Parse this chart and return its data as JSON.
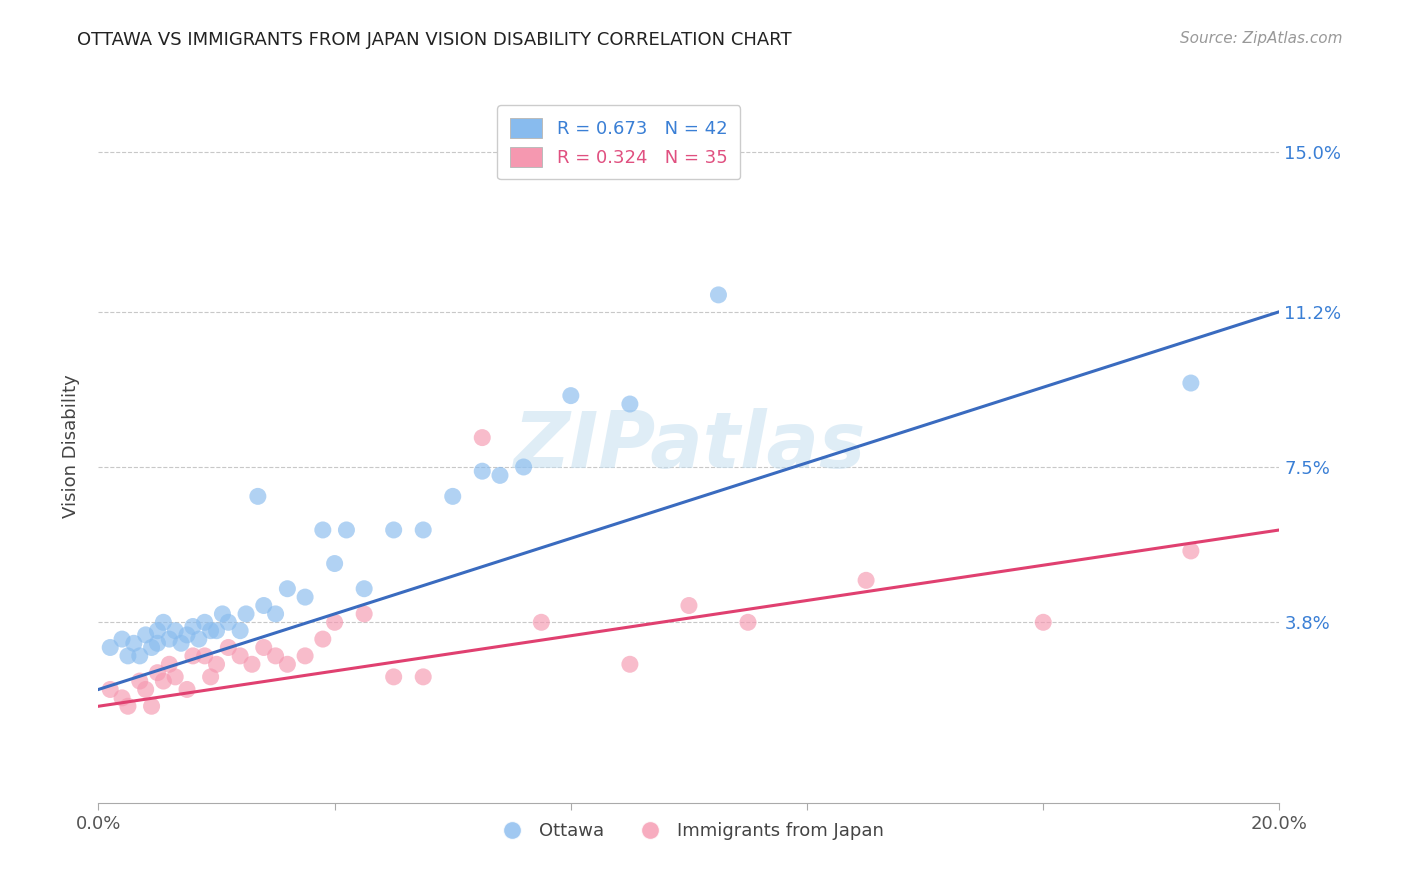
{
  "title": "OTTAWA VS IMMIGRANTS FROM JAPAN VISION DISABILITY CORRELATION CHART",
  "source": "Source: ZipAtlas.com",
  "ylabel": "Vision Disability",
  "xlim": [
    0.0,
    0.2
  ],
  "ylim": [
    -0.005,
    0.165
  ],
  "xtick_pos": [
    0.0,
    0.04,
    0.08,
    0.12,
    0.16,
    0.2
  ],
  "xticklabels": [
    "0.0%",
    "",
    "",
    "",
    "",
    "20.0%"
  ],
  "ytick_positions": [
    0.038,
    0.075,
    0.112,
    0.15
  ],
  "ytick_labels": [
    "3.8%",
    "7.5%",
    "11.2%",
    "15.0%"
  ],
  "legend_entries": [
    {
      "label": "R = 0.673   N = 42",
      "color": "#adc8e8",
      "text_color": "#3a7fd5"
    },
    {
      "label": "R = 0.324   N = 35",
      "color": "#f5b8c8",
      "text_color": "#e05080"
    }
  ],
  "ottawa_color": "#88bbee",
  "japan_color": "#f598b0",
  "trendline_blue": "#3a6bbf",
  "trendline_pink": "#e04070",
  "watermark": "ZIPatlas",
  "blue_trendline_x": [
    0.0,
    0.2
  ],
  "blue_trendline_y": [
    0.022,
    0.112
  ],
  "pink_trendline_x": [
    0.0,
    0.2
  ],
  "pink_trendline_y": [
    0.018,
    0.06
  ],
  "blue_x": [
    0.002,
    0.004,
    0.005,
    0.006,
    0.007,
    0.008,
    0.009,
    0.01,
    0.01,
    0.011,
    0.012,
    0.013,
    0.014,
    0.015,
    0.016,
    0.017,
    0.018,
    0.019,
    0.02,
    0.021,
    0.022,
    0.024,
    0.025,
    0.027,
    0.028,
    0.03,
    0.032,
    0.035,
    0.038,
    0.04,
    0.042,
    0.045,
    0.05,
    0.055,
    0.06,
    0.065,
    0.068,
    0.072,
    0.08,
    0.09,
    0.105,
    0.185
  ],
  "blue_y": [
    0.032,
    0.034,
    0.03,
    0.033,
    0.03,
    0.035,
    0.032,
    0.036,
    0.033,
    0.038,
    0.034,
    0.036,
    0.033,
    0.035,
    0.037,
    0.034,
    0.038,
    0.036,
    0.036,
    0.04,
    0.038,
    0.036,
    0.04,
    0.068,
    0.042,
    0.04,
    0.046,
    0.044,
    0.06,
    0.052,
    0.06,
    0.046,
    0.06,
    0.06,
    0.068,
    0.074,
    0.073,
    0.075,
    0.092,
    0.09,
    0.116,
    0.095
  ],
  "pink_x": [
    0.002,
    0.004,
    0.005,
    0.007,
    0.008,
    0.009,
    0.01,
    0.011,
    0.012,
    0.013,
    0.015,
    0.016,
    0.018,
    0.019,
    0.02,
    0.022,
    0.024,
    0.026,
    0.028,
    0.03,
    0.032,
    0.035,
    0.038,
    0.04,
    0.045,
    0.05,
    0.055,
    0.065,
    0.075,
    0.09,
    0.1,
    0.11,
    0.13,
    0.16,
    0.185
  ],
  "pink_y": [
    0.022,
    0.02,
    0.018,
    0.024,
    0.022,
    0.018,
    0.026,
    0.024,
    0.028,
    0.025,
    0.022,
    0.03,
    0.03,
    0.025,
    0.028,
    0.032,
    0.03,
    0.028,
    0.032,
    0.03,
    0.028,
    0.03,
    0.034,
    0.038,
    0.04,
    0.025,
    0.025,
    0.082,
    0.038,
    0.028,
    0.042,
    0.038,
    0.048,
    0.038,
    0.055
  ]
}
